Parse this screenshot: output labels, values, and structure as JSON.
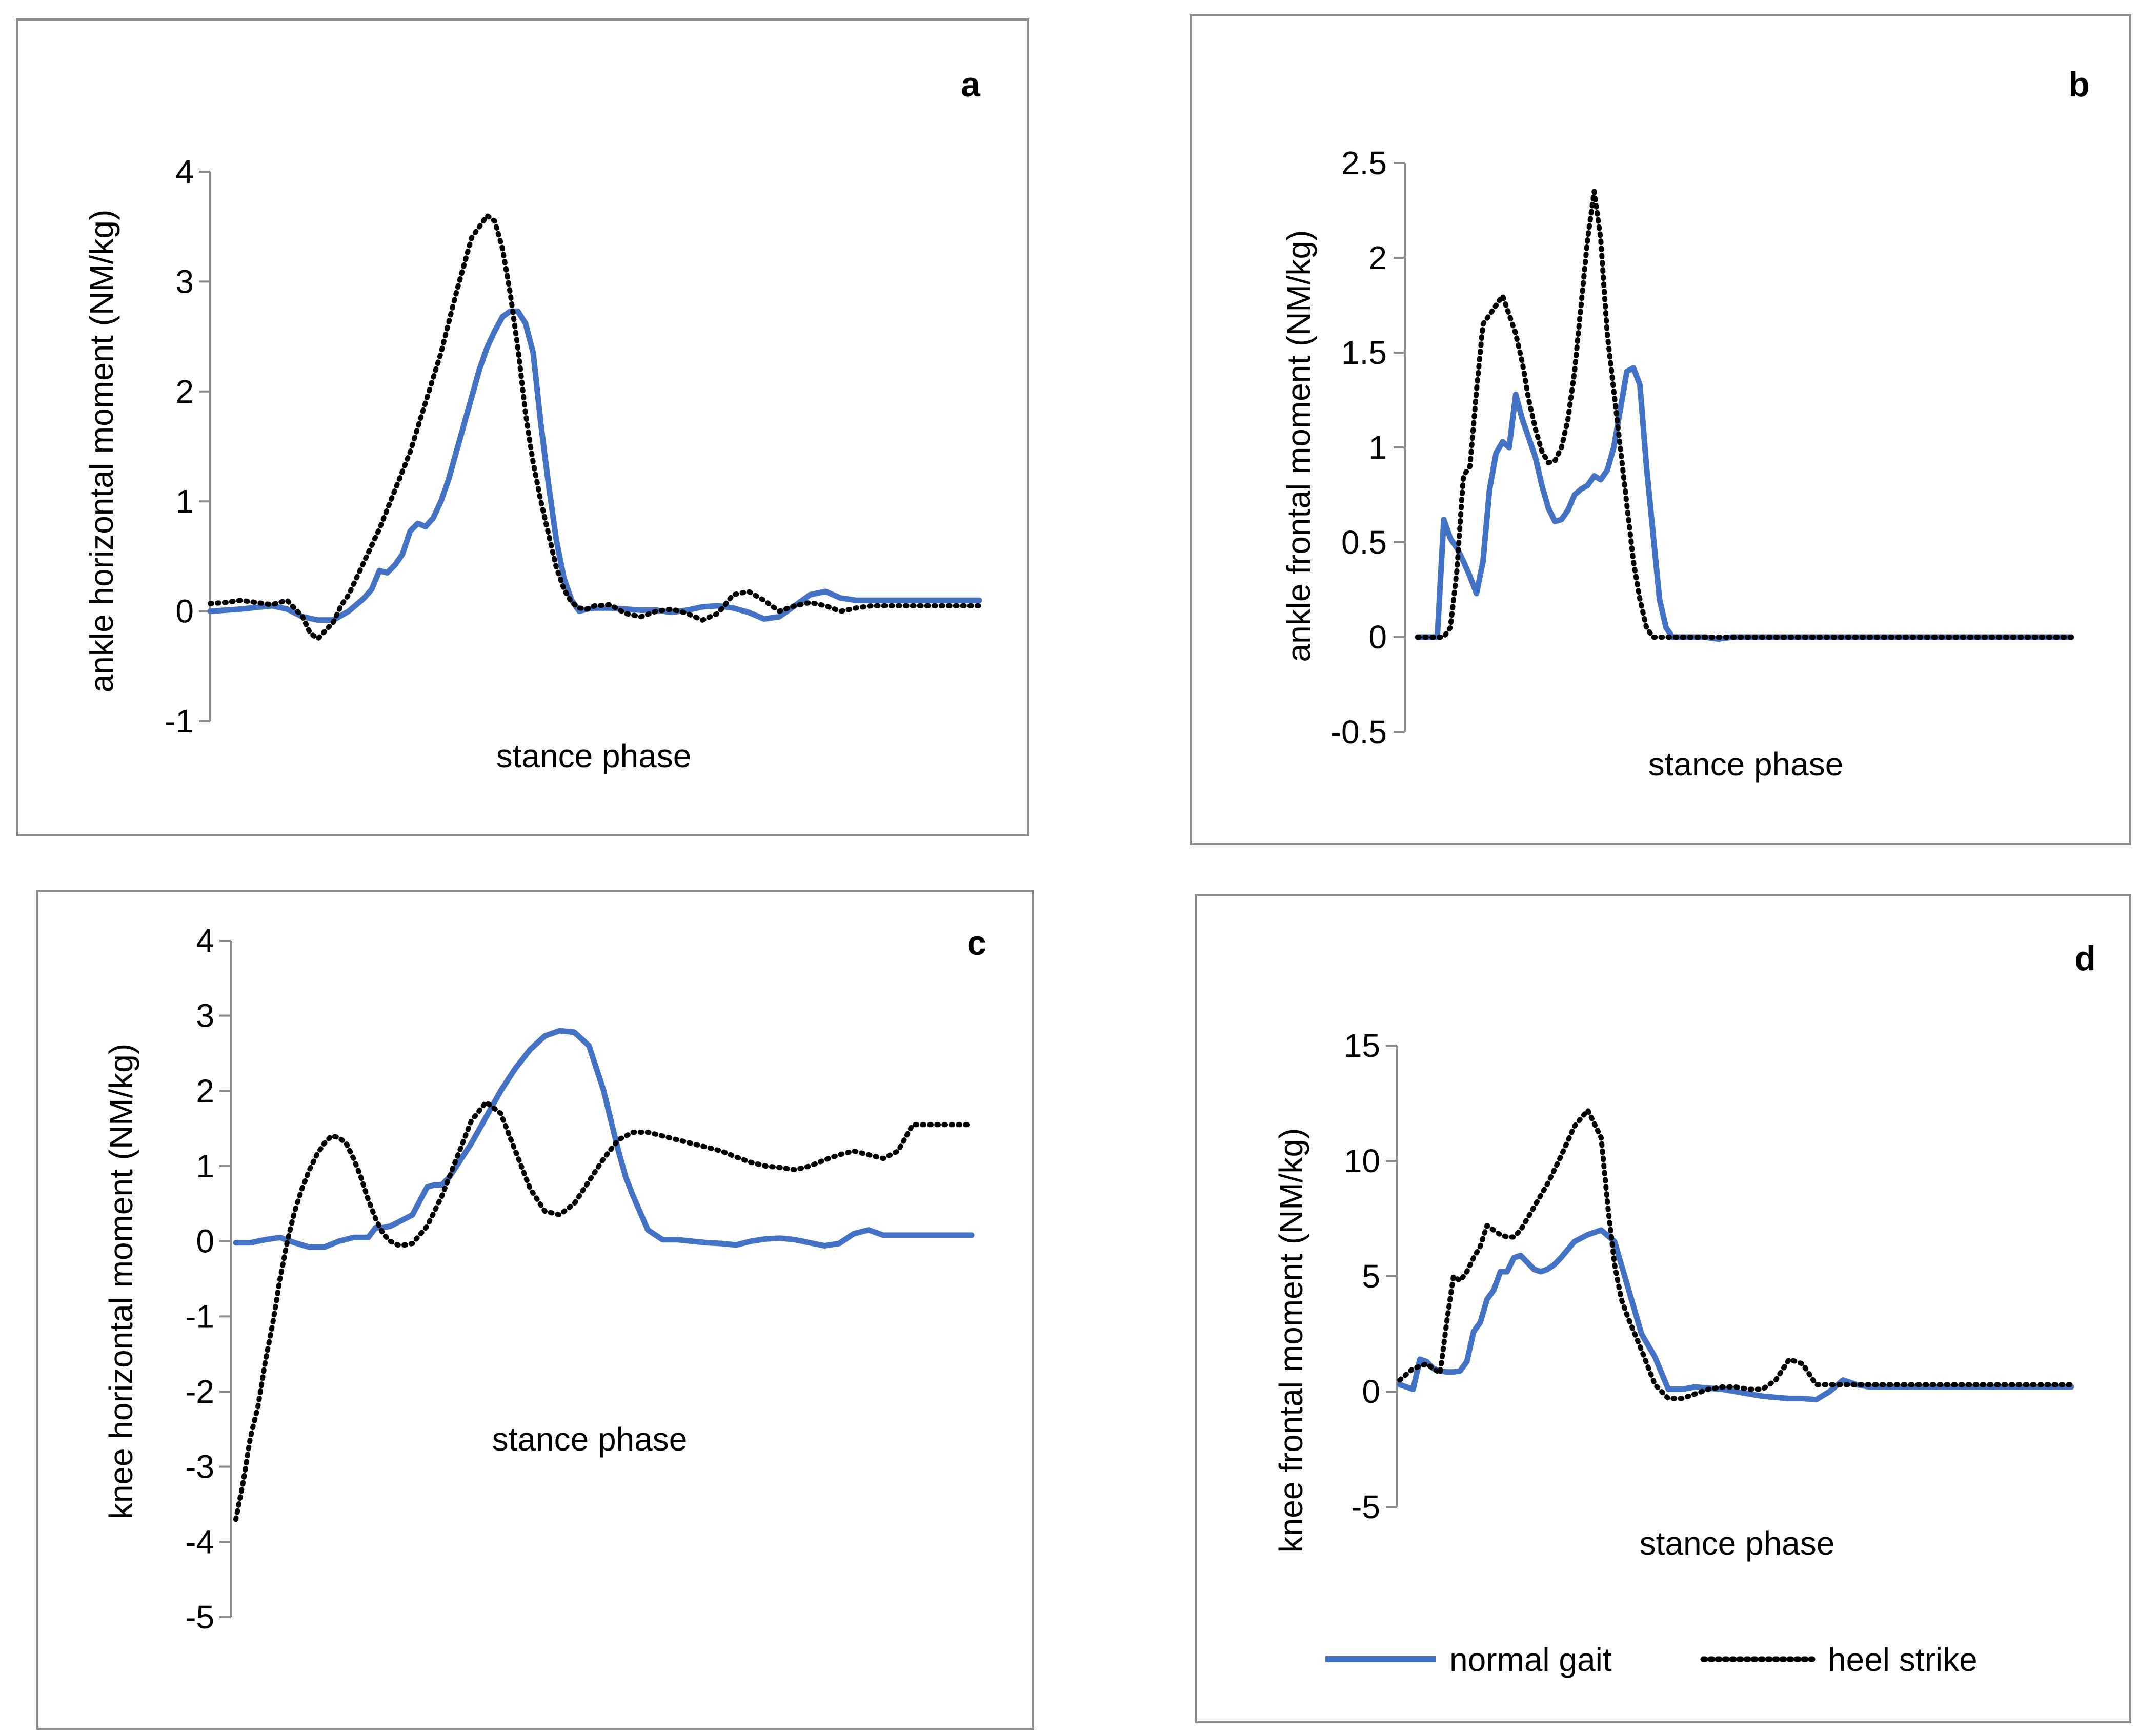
{
  "colors": {
    "normal": "#4472c4",
    "heel": "#000000"
  },
  "legend": {
    "normal_label": "normal gait",
    "heel_label": "heel strike"
  },
  "chart_data": [
    {
      "panel": "a",
      "type": "line",
      "xlabel": "stance phase",
      "ylabel": "ankle horizontal moment (NM/kg)",
      "ylim": [
        -1,
        4
      ],
      "yticks": [
        "-1",
        "0",
        "1",
        "2",
        "3",
        "4"
      ],
      "series": [
        {
          "name": "normal gait",
          "x": [
            0,
            4,
            8,
            10,
            12,
            14,
            16,
            18,
            20,
            21,
            22,
            23,
            24,
            25,
            26,
            27,
            28,
            29,
            30,
            31,
            32,
            33,
            34,
            35,
            36,
            37,
            38,
            39,
            40,
            41,
            42,
            43,
            44,
            45,
            46,
            47,
            48,
            49,
            50,
            52,
            54,
            56,
            58,
            60,
            62,
            64,
            66,
            68,
            70,
            72,
            74,
            76,
            78,
            80,
            82,
            84,
            86,
            88,
            90,
            92,
            94,
            96,
            98,
            100
          ],
          "y": [
            0,
            0.02,
            0.05,
            0.02,
            -0.05,
            -0.08,
            -0.08,
            0,
            0.12,
            0.2,
            0.37,
            0.35,
            0.42,
            0.52,
            0.73,
            0.8,
            0.77,
            0.85,
            1.0,
            1.2,
            1.45,
            1.7,
            1.95,
            2.2,
            2.4,
            2.55,
            2.68,
            2.73,
            2.73,
            2.62,
            2.35,
            1.7,
            1.15,
            0.65,
            0.3,
            0.1,
            0,
            0.02,
            0.03,
            0.03,
            0.02,
            0.01,
            0.01,
            -0.01,
            0.01,
            0.04,
            0.05,
            0.03,
            -0.01,
            -0.07,
            -0.05,
            0.05,
            0.15,
            0.18,
            0.12,
            0.1,
            0.1,
            0.1,
            0.1,
            0.1,
            0.1,
            0.1,
            0.1,
            0.1
          ]
        },
        {
          "name": "heel strike",
          "x": [
            0,
            2,
            4,
            6,
            8,
            10,
            12,
            13,
            14,
            16,
            17,
            18,
            19,
            20,
            22,
            24,
            26,
            28,
            30,
            32,
            34,
            36,
            37,
            38,
            39,
            40,
            41,
            42,
            43,
            44,
            45,
            46,
            47,
            48,
            49,
            50,
            52,
            54,
            56,
            58,
            60,
            62,
            64,
            66,
            68,
            70,
            72,
            74,
            76,
            78,
            80,
            82,
            84,
            86,
            88,
            90,
            92,
            94,
            96,
            98,
            100
          ],
          "y": [
            0.07,
            0.08,
            0.1,
            0.08,
            0.06,
            0.1,
            -0.05,
            -0.2,
            -0.25,
            -0.1,
            0.05,
            0.15,
            0.3,
            0.45,
            0.75,
            1.1,
            1.45,
            1.9,
            2.35,
            2.9,
            3.4,
            3.6,
            3.55,
            3.3,
            2.9,
            2.4,
            1.8,
            1.35,
            1.0,
            0.7,
            0.4,
            0.2,
            0.08,
            0.03,
            0.02,
            0.05,
            0.06,
            -0.02,
            -0.05,
            0,
            0.02,
            -0.02,
            -0.08,
            -0.02,
            0.15,
            0.18,
            0.1,
            0,
            0.05,
            0.08,
            0.05,
            0,
            0.03,
            0.05,
            0.05,
            0.05,
            0.05,
            0.05,
            0.05,
            0.05,
            0.05
          ]
        }
      ]
    },
    {
      "panel": "b",
      "type": "line",
      "xlabel": "stance phase",
      "ylabel": "ankle frontal moment (NM/kg)",
      "ylim": [
        -0.5,
        2.5
      ],
      "yticks": [
        "-0.5",
        "0",
        "0.5",
        "1",
        "1.5",
        "2",
        "2.5"
      ],
      "series": [
        {
          "name": "normal gait",
          "x": [
            0,
            3,
            4,
            5,
            6,
            7,
            8,
            9,
            10,
            11,
            12,
            13,
            14,
            15,
            16,
            17,
            18,
            19,
            20,
            21,
            22,
            23,
            24,
            25,
            26,
            27,
            28,
            29,
            30,
            31,
            32,
            33,
            34,
            35,
            36,
            37,
            38,
            39,
            40,
            41,
            42,
            44,
            46,
            48,
            50,
            55,
            60,
            65,
            70,
            75,
            80,
            85,
            90,
            95,
            100
          ],
          "y": [
            0,
            0,
            0.62,
            0.52,
            0.47,
            0.4,
            0.32,
            0.23,
            0.4,
            0.78,
            0.97,
            1.03,
            1.0,
            1.28,
            1.15,
            1.05,
            0.95,
            0.8,
            0.68,
            0.61,
            0.62,
            0.67,
            0.75,
            0.78,
            0.8,
            0.85,
            0.83,
            0.88,
            1.0,
            1.2,
            1.4,
            1.42,
            1.33,
            0.9,
            0.55,
            0.2,
            0.05,
            0,
            0,
            0,
            0,
            0,
            -0.01,
            0,
            0,
            0,
            0,
            0,
            0,
            0,
            0,
            0,
            0,
            0,
            0
          ]
        },
        {
          "name": "heel strike",
          "x": [
            0,
            4,
            5,
            6,
            7,
            8,
            9,
            10,
            11,
            12,
            13,
            14,
            15,
            16,
            17,
            18,
            19,
            20,
            21,
            22,
            23,
            24,
            25,
            26,
            27,
            28,
            29,
            30,
            31,
            32,
            33,
            34,
            35,
            36,
            37,
            38,
            39,
            40,
            42,
            44,
            46,
            48,
            50,
            55,
            60,
            65,
            70,
            75,
            80,
            85,
            90,
            95,
            100
          ],
          "y": [
            0,
            0,
            0.05,
            0.35,
            0.85,
            0.9,
            1.3,
            1.65,
            1.7,
            1.75,
            1.8,
            1.7,
            1.6,
            1.45,
            1.25,
            1.1,
            0.98,
            0.92,
            0.93,
            1.0,
            1.15,
            1.4,
            1.75,
            2.1,
            2.35,
            2.1,
            1.6,
            1.3,
            1.0,
            0.7,
            0.4,
            0.2,
            0.05,
            0,
            0,
            0,
            0,
            0,
            0,
            0,
            0,
            0,
            0,
            0,
            0,
            0,
            0,
            0,
            0,
            0,
            0,
            0,
            0
          ]
        }
      ]
    },
    {
      "panel": "c",
      "type": "line",
      "xlabel": "stance phase",
      "ylabel": "knee horizontal moment (NM/kg)",
      "ylim": [
        -5,
        4
      ],
      "yticks": [
        "-5",
        "-4",
        "-3",
        "-2",
        "-1",
        "0",
        "1",
        "2",
        "3",
        "4"
      ],
      "series": [
        {
          "name": "normal gait",
          "x": [
            0,
            2,
            4,
            6,
            8,
            10,
            12,
            14,
            16,
            18,
            19,
            20,
            21,
            22,
            24,
            26,
            27,
            28,
            29,
            30,
            32,
            34,
            36,
            38,
            40,
            42,
            44,
            46,
            48,
            50,
            51,
            52,
            53,
            54,
            56,
            58,
            60,
            62,
            64,
            66,
            68,
            70,
            72,
            74,
            76,
            78,
            80,
            82,
            84,
            86,
            88,
            90,
            92,
            94,
            96,
            98,
            100
          ],
          "y": [
            -0.02,
            -0.02,
            0.02,
            0.05,
            -0.02,
            -0.08,
            -0.08,
            0,
            0.05,
            0.05,
            0.18,
            0.18,
            0.2,
            0.25,
            0.35,
            0.72,
            0.75,
            0.75,
            0.85,
            1.0,
            1.3,
            1.65,
            2.0,
            2.3,
            2.55,
            2.73,
            2.8,
            2.78,
            2.6,
            2.0,
            1.6,
            1.2,
            0.85,
            0.6,
            0.15,
            0.02,
            0.02,
            0,
            -0.02,
            -0.03,
            -0.05,
            0,
            0.03,
            0.04,
            0.02,
            -0.02,
            -0.06,
            -0.03,
            0.1,
            0.15,
            0.08,
            0.08,
            0.08,
            0.08,
            0.08,
            0.08,
            0.08
          ]
        },
        {
          "name": "heel strike",
          "x": [
            0,
            1,
            2,
            3,
            4,
            5,
            6,
            7,
            8,
            9,
            10,
            11,
            12,
            13,
            14,
            15,
            16,
            17,
            18,
            19,
            20,
            21,
            22,
            23,
            24,
            26,
            28,
            30,
            32,
            34,
            36,
            38,
            40,
            42,
            44,
            46,
            48,
            50,
            52,
            54,
            56,
            58,
            60,
            62,
            64,
            66,
            68,
            70,
            72,
            74,
            76,
            78,
            80,
            82,
            84,
            86,
            88,
            90,
            92,
            94,
            96,
            98,
            100
          ],
          "y": [
            -3.7,
            -3.2,
            -2.6,
            -2.2,
            -1.6,
            -1.1,
            -0.5,
            0,
            0.4,
            0.7,
            0.95,
            1.15,
            1.3,
            1.4,
            1.38,
            1.3,
            1.1,
            0.85,
            0.55,
            0.3,
            0.1,
            0,
            -0.05,
            -0.05,
            -0.03,
            0.2,
            0.6,
            1.1,
            1.6,
            1.85,
            1.7,
            1.2,
            0.7,
            0.4,
            0.35,
            0.5,
            0.8,
            1.1,
            1.35,
            1.45,
            1.45,
            1.4,
            1.35,
            1.3,
            1.25,
            1.2,
            1.12,
            1.05,
            1.0,
            0.98,
            0.95,
            1.0,
            1.08,
            1.15,
            1.2,
            1.15,
            1.1,
            1.2,
            1.55,
            1.55,
            1.55,
            1.55,
            1.55
          ]
        }
      ]
    },
    {
      "panel": "d",
      "type": "line",
      "xlabel": "stance phase",
      "ylabel": "knee frontal moment (NM/kg)",
      "ylim": [
        -5,
        15
      ],
      "yticks": [
        "-5",
        "0",
        "5",
        "10",
        "15"
      ],
      "series": [
        {
          "name": "normal gait",
          "x": [
            0,
            2,
            3,
            4,
            5,
            6,
            7,
            8,
            9,
            10,
            11,
            12,
            13,
            14,
            15,
            16,
            17,
            18,
            19,
            20,
            21,
            22,
            23,
            24,
            26,
            28,
            30,
            32,
            34,
            36,
            38,
            40,
            42,
            44,
            46,
            48,
            50,
            52,
            54,
            56,
            58,
            60,
            62,
            64,
            66,
            68,
            70,
            72,
            74,
            76,
            78,
            80,
            82,
            84,
            86,
            88,
            90,
            92,
            94,
            96,
            98,
            100
          ],
          "y": [
            0.3,
            0.1,
            1.4,
            1.3,
            1.0,
            0.9,
            0.85,
            0.85,
            0.9,
            1.3,
            2.6,
            3.0,
            4.0,
            4.4,
            5.2,
            5.2,
            5.8,
            5.9,
            5.6,
            5.3,
            5.2,
            5.3,
            5.5,
            5.8,
            6.5,
            6.8,
            7.0,
            6.5,
            4.5,
            2.5,
            1.5,
            0.1,
            0.1,
            0.2,
            0.15,
            0.1,
            0,
            -0.1,
            -0.2,
            -0.25,
            -0.3,
            -0.3,
            -0.35,
            0,
            0.5,
            0.3,
            0.2,
            0.2,
            0.2,
            0.2,
            0.2,
            0.2,
            0.2,
            0.2,
            0.2,
            0.2,
            0.2,
            0.2,
            0.2,
            0.2,
            0.2,
            0.2
          ]
        },
        {
          "name": "heel strike",
          "x": [
            0,
            2,
            4,
            6,
            7,
            8,
            9,
            10,
            11,
            12,
            13,
            14,
            15,
            16,
            17,
            18,
            19,
            20,
            22,
            24,
            26,
            28,
            30,
            31,
            32,
            33,
            34,
            35,
            36,
            38,
            40,
            42,
            44,
            46,
            48,
            50,
            52,
            54,
            56,
            58,
            60,
            62,
            64,
            66,
            68,
            70,
            72,
            74,
            76,
            78,
            80,
            82,
            84,
            86,
            88,
            90,
            92,
            94,
            96,
            98,
            100
          ],
          "y": [
            0.5,
            1.0,
            1.2,
            0.8,
            3.0,
            5.0,
            4.8,
            5.2,
            5.8,
            6.3,
            7.2,
            7.0,
            6.8,
            6.7,
            6.7,
            7.0,
            7.5,
            8.0,
            9.0,
            10.2,
            11.5,
            12.2,
            11.0,
            8.0,
            5.5,
            4.0,
            3.2,
            2.5,
            1.8,
            0.3,
            -0.3,
            -0.3,
            -0.1,
            0.1,
            0.2,
            0.2,
            0.1,
            0.1,
            0.5,
            1.4,
            1.2,
            0.3,
            0.3,
            0.3,
            0.3,
            0.3,
            0.3,
            0.3,
            0.3,
            0.3,
            0.3,
            0.3,
            0.3,
            0.3,
            0.3,
            0.3,
            0.3,
            0.3,
            0.3,
            0.3,
            0.3
          ]
        }
      ]
    }
  ]
}
